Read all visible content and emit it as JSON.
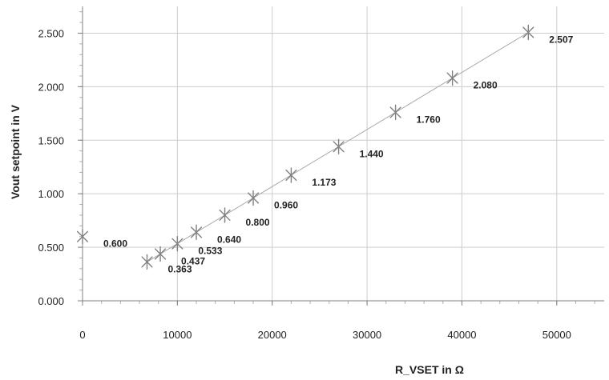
{
  "chart_data": {
    "type": "scatter",
    "xlabel": "R_VSET in Ω",
    "ylabel": "Vout setpoint in V",
    "xlim": [
      0,
      55000
    ],
    "ylim": [
      0,
      2.75
    ],
    "x_ticks": [
      0,
      10000,
      20000,
      30000,
      40000,
      50000
    ],
    "y_ticks": [
      0,
      0.5,
      1.0,
      1.5,
      2.0,
      2.5
    ],
    "x_tick_labels": [
      "0",
      "10000",
      "20000",
      "30000",
      "40000",
      "50000"
    ],
    "y_tick_labels": [
      "0.000",
      "0.500",
      "1.000",
      "1.500",
      "2.000",
      "2.500"
    ],
    "grid": true,
    "marker": "asterisk",
    "trendline": {
      "from_x": 6800,
      "to_x": 47000
    },
    "colors": {
      "marker": "#808080",
      "trendline": "#a8a8a8",
      "grid": "#cccccc",
      "axis": "#808080"
    },
    "series": [
      {
        "x": [
          0,
          6800,
          8200,
          10000,
          12000,
          15000,
          18000,
          22000,
          27000,
          33000,
          39000,
          47000
        ],
        "y": [
          0.6,
          0.363,
          0.437,
          0.533,
          0.64,
          0.8,
          0.96,
          1.173,
          1.44,
          1.76,
          2.08,
          2.507
        ],
        "labels": [
          "0.600",
          "0.363",
          "0.437",
          "0.533",
          "0.640",
          "0.800",
          "0.960",
          "1.173",
          "1.440",
          "1.760",
          "2.080",
          "2.507"
        ]
      }
    ]
  }
}
